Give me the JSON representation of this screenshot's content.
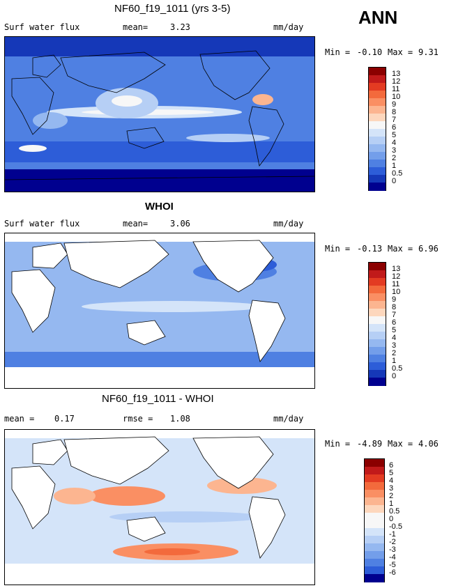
{
  "season": "ANN",
  "chart_data": [
    {
      "type": "heatmap",
      "title": "NF60_f19_1011 (yrs 3-5)",
      "variable": "Surf water flux",
      "stat1_label": "mean=",
      "stat1_value": "3.23",
      "units": "mm/day",
      "min_label": "Min =",
      "min_value": "-0.10",
      "max_label": "Max =",
      "max_value": "9.31",
      "colorbar_levels": [
        "13",
        "12",
        "11",
        "10",
        "9",
        "8",
        "7",
        "6",
        "5",
        "4",
        "3",
        "2",
        "1",
        "0.5",
        "0"
      ],
      "colorbar_colors": [
        "#8b0000",
        "#c11a1a",
        "#e33b22",
        "#f36a3c",
        "#fa8f63",
        "#fcb590",
        "#fdd7bd",
        "#f7f7f7",
        "#d4e4f9",
        "#b6cff5",
        "#95b8f0",
        "#739eea",
        "#4f80e2",
        "#2d5dd8",
        "#1538b8",
        "#00008f"
      ],
      "background": "#4f80e2",
      "land_masked": false
    },
    {
      "type": "heatmap",
      "title": "WHOI",
      "variable": "Surf water flux",
      "stat1_label": "mean=",
      "stat1_value": "3.06",
      "units": "mm/day",
      "min_label": "Min =",
      "min_value": "-0.13",
      "max_label": "Max =",
      "max_value": "6.96",
      "colorbar_levels": [
        "13",
        "12",
        "11",
        "10",
        "9",
        "8",
        "7",
        "6",
        "5",
        "4",
        "3",
        "2",
        "1",
        "0.5",
        "0"
      ],
      "colorbar_colors": [
        "#8b0000",
        "#c11a1a",
        "#e33b22",
        "#f36a3c",
        "#fa8f63",
        "#fcb590",
        "#fdd7bd",
        "#f7f7f7",
        "#d4e4f9",
        "#b6cff5",
        "#95b8f0",
        "#739eea",
        "#4f80e2",
        "#2d5dd8",
        "#1538b8",
        "#00008f"
      ],
      "background": "#95b8f0",
      "land_masked": true
    },
    {
      "type": "heatmap",
      "title": "NF60_f19_1011 - WHOI",
      "stat1_label": "mean =",
      "stat1_value": "0.17",
      "stat2_label": "rmse =",
      "stat2_value": "1.08",
      "units": "mm/day",
      "min_label": "Min =",
      "min_value": "-4.89",
      "max_label": "Max =",
      "max_value": "4.06",
      "colorbar_levels": [
        "6",
        "5",
        "4",
        "3",
        "2",
        "1",
        "0.5",
        "0",
        "-0.5",
        "-1",
        "-2",
        "-3",
        "-4",
        "-5",
        "-6"
      ],
      "colorbar_colors": [
        "#8b0000",
        "#c11a1a",
        "#e33b22",
        "#f36a3c",
        "#fa8f63",
        "#fcb590",
        "#fdd7bd",
        "#f7f7f7",
        "#f7f7f7",
        "#d4e4f9",
        "#b6cff5",
        "#95b8f0",
        "#739eea",
        "#4f80e2",
        "#2d5dd8",
        "#00008f"
      ],
      "background": "#d4e4f9",
      "land_masked": true
    }
  ]
}
